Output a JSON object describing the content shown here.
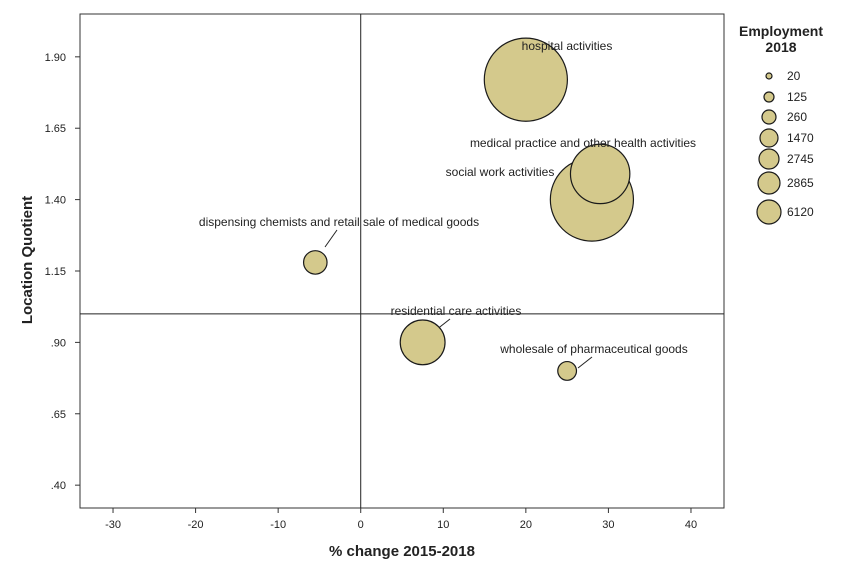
{
  "chart_data": {
    "type": "scatter",
    "xlabel": "% change 2015-2018",
    "ylabel": "Location Quotient",
    "xlim": [
      -34,
      44
    ],
    "ylim": [
      0.32,
      2.05
    ],
    "x_ticks": [
      -30,
      -20,
      -10,
      0,
      10,
      20,
      30,
      40
    ],
    "x_tick_labels": [
      "-30",
      "-20",
      "-10",
      "0",
      "10",
      "20",
      "30",
      "40"
    ],
    "y_ticks": [
      0.4,
      0.65,
      0.9,
      1.15,
      1.4,
      1.65,
      1.9
    ],
    "y_tick_labels": [
      ".40",
      ".65",
      ".90",
      "1.15",
      "1.40",
      "1.65",
      "1.90"
    ],
    "reference_lines": {
      "x": 0,
      "y": 1.0
    },
    "bubble_color": "#d4c98c",
    "bubble_stroke": "#1a1a1a",
    "points": [
      {
        "label": "hospital activities",
        "x": 20,
        "y": 1.82,
        "employment": 6120
      },
      {
        "label": "medical practice and other health activities",
        "x": 29,
        "y": 1.49,
        "employment": 2865
      },
      {
        "label": "social work activities",
        "x": 28,
        "y": 1.4,
        "employment": 6120
      },
      {
        "label": "dispensing chemists and retail sale of medical goods",
        "x": -5.5,
        "y": 1.18,
        "employment": 260
      },
      {
        "label": "residential care activities",
        "x": 7.5,
        "y": 0.9,
        "employment": 1470
      },
      {
        "label": "wholesale of pharmaceutical goods",
        "x": 25,
        "y": 0.8,
        "employment": 125
      }
    ],
    "legend": {
      "title_line1": "Employment",
      "title_line2": "2018",
      "entries": [
        "20",
        "125",
        "260",
        "1470",
        "2745",
        "2865",
        "6120"
      ]
    },
    "grid": false
  }
}
